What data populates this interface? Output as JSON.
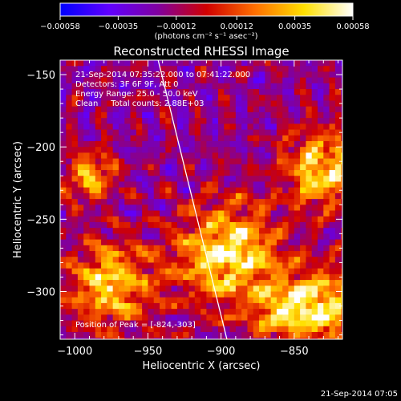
{
  "chart_data": {
    "type": "heatmap",
    "title": "Reconstructed RHESSI Image",
    "xlabel": "Heliocentric X (arcsec)",
    "ylabel": "Heliocentric Y (arcsec)",
    "xlim": [
      -1010,
      -817
    ],
    "ylim": [
      -333,
      -140
    ],
    "xticks": [
      -1000,
      -950,
      -900,
      -850
    ],
    "xtick_labels": [
      "−1000",
      "−950",
      "−900",
      "−850"
    ],
    "yticks": [
      -150,
      -200,
      -250,
      -300
    ],
    "ytick_labels": [
      "−150",
      "−200",
      "−250",
      "−300"
    ],
    "colorbar": {
      "min": -0.00058,
      "max": 0.00058,
      "ticks": [
        -0.00058,
        -0.00035,
        -0.00012,
        0.00012,
        0.00035,
        0.00058
      ],
      "tick_labels": [
        "−0.00058",
        "−0.00035",
        "−0.00012",
        "0.00012",
        "0.00035",
        "0.00058"
      ],
      "units": "(photons cm⁻² s⁻¹ asec⁻²)",
      "colors": [
        "#0000ff",
        "#6000ff",
        "#8000a0",
        "#d00000",
        "#ff7000",
        "#ffe000",
        "#ffffff"
      ]
    },
    "annotations": [
      "21-Sep-2014 07:35:22.000 to 07:41:22.000",
      "Detectors: 3F 6F 9F, Att 0",
      "Energy Range: 25.0 - 50.0 keV",
      "Clean     Total counts: 2.88E+03"
    ],
    "peak_label": "Position of Peak = [-824,-303]",
    "limb_line": [
      [
        -943,
        -140
      ],
      [
        -896,
        -333
      ]
    ],
    "sources": [
      {
        "x": -895,
        "y": -275,
        "amp": 1.0,
        "sigma": 24
      },
      {
        "x": -830,
        "y": -215,
        "amp": 0.9,
        "sigma": 18
      },
      {
        "x": -830,
        "y": -310,
        "amp": 0.95,
        "sigma": 18
      },
      {
        "x": -975,
        "y": -295,
        "amp": 0.85,
        "sigma": 20
      },
      {
        "x": -990,
        "y": -220,
        "amp": 0.7,
        "sigma": 12
      },
      {
        "x": -860,
        "y": -315,
        "amp": 0.6,
        "sigma": 14
      }
    ]
  },
  "footer_timestamp": "21-Sep-2014 07:05"
}
